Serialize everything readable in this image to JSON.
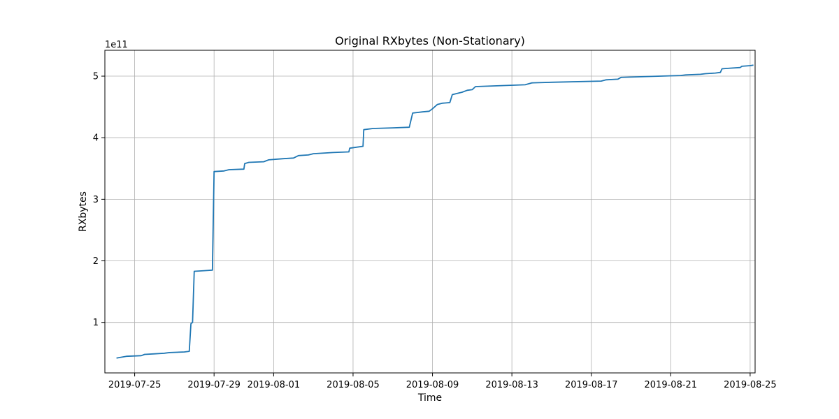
{
  "chart_data": {
    "type": "line",
    "title": "Original RXbytes (Non-Stationary)",
    "xlabel": "Time",
    "ylabel": "RXbytes",
    "y_scale_note": "1e11",
    "grid": true,
    "legend": "none",
    "colors": {
      "series": "#1f77b4",
      "grid": "#b0b0b0",
      "axes": "#000000"
    },
    "xlim": [
      "2019-07-23T12:00",
      "2019-08-25T06:00"
    ],
    "ylim": [
      0.18,
      5.42
    ],
    "x_ticks": [
      "2019-07-25",
      "2019-07-29",
      "2019-08-01",
      "2019-08-05",
      "2019-08-09",
      "2019-08-13",
      "2019-08-17",
      "2019-08-21",
      "2019-08-25"
    ],
    "y_ticks": [
      1,
      2,
      3,
      4,
      5
    ],
    "series": [
      {
        "points": [
          [
            "2019-07-24T02:00",
            0.42
          ],
          [
            "2019-07-24T14:00",
            0.45
          ],
          [
            "2019-07-25T08:00",
            0.46
          ],
          [
            "2019-07-25T12:00",
            0.48
          ],
          [
            "2019-07-26T00:00",
            0.49
          ],
          [
            "2019-07-26T12:00",
            0.5
          ],
          [
            "2019-07-26T18:00",
            0.51
          ],
          [
            "2019-07-27T12:00",
            0.52
          ],
          [
            "2019-07-27T18:00",
            0.53
          ],
          [
            "2019-07-27T20:00",
            0.98
          ],
          [
            "2019-07-27T22:00",
            1.0
          ],
          [
            "2019-07-28T00:00",
            1.83
          ],
          [
            "2019-07-28T12:00",
            1.84
          ],
          [
            "2019-07-28T22:00",
            1.85
          ],
          [
            "2019-07-29T00:00",
            3.45
          ],
          [
            "2019-07-29T12:00",
            3.46
          ],
          [
            "2019-07-29T18:00",
            3.48
          ],
          [
            "2019-07-30T12:00",
            3.49
          ],
          [
            "2019-07-30T13:00",
            3.58
          ],
          [
            "2019-07-30T18:00",
            3.6
          ],
          [
            "2019-07-31T12:00",
            3.61
          ],
          [
            "2019-07-31T18:00",
            3.64
          ],
          [
            "2019-08-01T12:00",
            3.66
          ],
          [
            "2019-08-02T00:00",
            3.67
          ],
          [
            "2019-08-02T06:00",
            3.71
          ],
          [
            "2019-08-02T18:00",
            3.72
          ],
          [
            "2019-08-03T00:00",
            3.74
          ],
          [
            "2019-08-04T00:00",
            3.76
          ],
          [
            "2019-08-04T19:00",
            3.77
          ],
          [
            "2019-08-04T20:00",
            3.83
          ],
          [
            "2019-08-05T12:00",
            3.86
          ],
          [
            "2019-08-05T13:00",
            4.13
          ],
          [
            "2019-08-06T00:00",
            4.15
          ],
          [
            "2019-08-07T00:00",
            4.16
          ],
          [
            "2019-08-07T20:00",
            4.17
          ],
          [
            "2019-08-08T00:00",
            4.4
          ],
          [
            "2019-08-08T12:00",
            4.42
          ],
          [
            "2019-08-08T20:00",
            4.43
          ],
          [
            "2019-08-09T00:00",
            4.47
          ],
          [
            "2019-08-09T06:00",
            4.54
          ],
          [
            "2019-08-09T12:00",
            4.56
          ],
          [
            "2019-08-09T21:00",
            4.57
          ],
          [
            "2019-08-10T00:00",
            4.7
          ],
          [
            "2019-08-10T12:00",
            4.74
          ],
          [
            "2019-08-10T18:00",
            4.77
          ],
          [
            "2019-08-11T00:00",
            4.78
          ],
          [
            "2019-08-11T04:00",
            4.83
          ],
          [
            "2019-08-12T00:00",
            4.84
          ],
          [
            "2019-08-13T16:00",
            4.86
          ],
          [
            "2019-08-14T00:00",
            4.89
          ],
          [
            "2019-08-15T00:00",
            4.9
          ],
          [
            "2019-08-17T12:00",
            4.92
          ],
          [
            "2019-08-17T18:00",
            4.94
          ],
          [
            "2019-08-18T08:00",
            4.95
          ],
          [
            "2019-08-18T12:00",
            4.98
          ],
          [
            "2019-08-19T12:00",
            4.99
          ],
          [
            "2019-08-20T12:00",
            5.0
          ],
          [
            "2019-08-21T12:00",
            5.01
          ],
          [
            "2019-08-21T18:00",
            5.02
          ],
          [
            "2019-08-22T12:00",
            5.03
          ],
          [
            "2019-08-22T18:00",
            5.04
          ],
          [
            "2019-08-23T06:00",
            5.05
          ],
          [
            "2019-08-23T12:00",
            5.06
          ],
          [
            "2019-08-23T14:00",
            5.12
          ],
          [
            "2019-08-24T00:00",
            5.13
          ],
          [
            "2019-08-24T12:00",
            5.14
          ],
          [
            "2019-08-24T14:00",
            5.16
          ],
          [
            "2019-08-25T00:00",
            5.17
          ],
          [
            "2019-08-25T04:00",
            5.18
          ]
        ]
      }
    ]
  }
}
